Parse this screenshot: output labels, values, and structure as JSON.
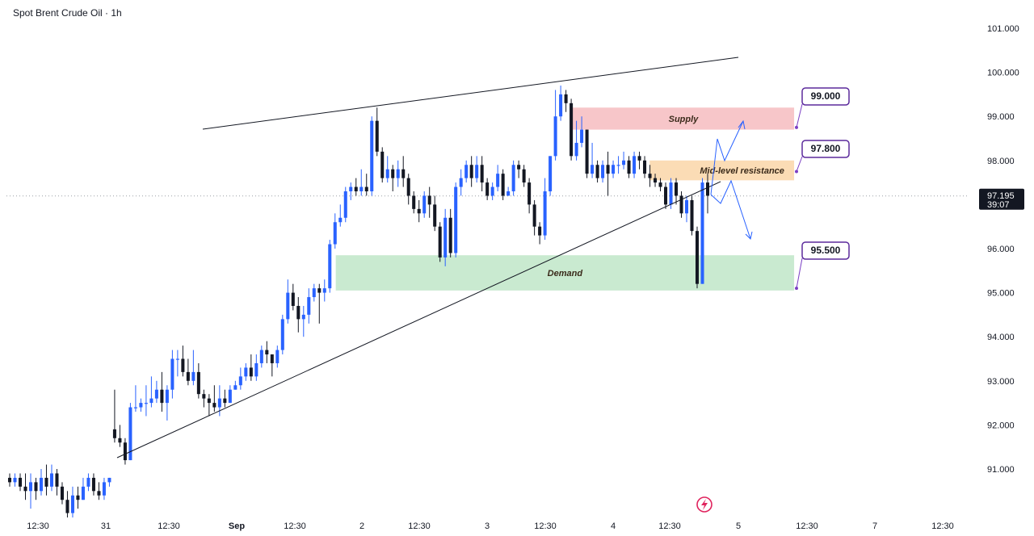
{
  "header": {
    "title": "Spot Brent Crude Oil · 1h"
  },
  "chart_data": {
    "type": "candlestick",
    "title": "Spot Brent Crude Oil · 1h",
    "ylim": [
      90.0,
      101.5
    ],
    "y_ticks": [
      "101.000",
      "100.000",
      "99.000",
      "98.000",
      "97.000",
      "96.000",
      "95.000",
      "94.000",
      "93.000",
      "92.000",
      "91.000"
    ],
    "x_ticks": [
      "12:30",
      "31",
      "12:30",
      "Sep",
      "12:30",
      "2",
      "12:30",
      "3",
      "12:30",
      "4",
      "12:30",
      "5",
      "12:30",
      "7",
      "12:30"
    ],
    "current_price": {
      "price": "97.195",
      "countdown": "39:07",
      "value": 97.195
    },
    "zones": [
      {
        "name": "Supply",
        "low": 98.7,
        "high": 99.2,
        "color": "#f7c6c9"
      },
      {
        "name": "Mid-level resistance",
        "low": 97.55,
        "high": 98.0,
        "color": "#fbdcb5"
      },
      {
        "name": "Demand",
        "low": 95.05,
        "high": 95.85,
        "color": "#c9ead0"
      }
    ],
    "callouts": [
      {
        "label": "99.000",
        "value": 99.0
      },
      {
        "label": "97.800",
        "value": 97.8
      },
      {
        "label": "95.500",
        "value": 95.5
      }
    ],
    "trendlines": [
      {
        "name": "upper-trendline",
        "from": [
          0.175,
          98.7
        ],
        "to": [
          0.79,
          100.35
        ]
      },
      {
        "name": "lower-trendline",
        "from": [
          0.098,
          91.3
        ],
        "to": [
          0.775,
          97.4
        ]
      }
    ],
    "candles": [
      [
        90.8,
        90.7,
        90.9,
        90.6
      ],
      [
        90.7,
        90.8,
        90.9,
        90.6
      ],
      [
        90.8,
        90.6,
        90.9,
        90.5
      ],
      [
        90.6,
        90.5,
        90.9,
        90.3
      ],
      [
        90.5,
        90.7,
        90.9,
        90.1
      ],
      [
        90.7,
        90.5,
        90.8,
        90.3
      ],
      [
        90.5,
        90.8,
        91.0,
        90.4
      ],
      [
        90.8,
        90.6,
        91.1,
        90.4
      ],
      [
        90.6,
        90.9,
        91.1,
        90.5
      ],
      [
        90.9,
        90.6,
        91.0,
        90.4
      ],
      [
        90.6,
        90.3,
        90.7,
        90.2
      ],
      [
        90.3,
        90.0,
        90.5,
        89.9
      ],
      [
        90.0,
        90.4,
        90.6,
        89.9
      ],
      [
        90.4,
        90.3,
        90.6,
        90.1
      ],
      [
        90.3,
        90.6,
        90.8,
        90.3
      ],
      [
        90.6,
        90.8,
        90.9,
        90.5
      ],
      [
        90.8,
        90.5,
        90.9,
        90.4
      ],
      [
        90.5,
        90.4,
        90.7,
        90.3
      ],
      [
        90.4,
        90.7,
        90.8,
        90.3
      ],
      [
        90.7,
        90.8,
        90.8,
        90.6
      ],
      [
        91.9,
        91.7,
        92.8,
        91.6
      ],
      [
        91.7,
        91.6,
        92.0,
        91.5
      ],
      [
        91.6,
        91.2,
        91.7,
        91.1
      ],
      [
        91.2,
        92.4,
        92.5,
        91.2
      ],
      [
        92.4,
        92.4,
        92.9,
        92.3
      ],
      [
        92.4,
        92.5,
        92.6,
        92.3
      ],
      [
        92.5,
        92.5,
        92.9,
        92.2
      ],
      [
        92.5,
        92.6,
        93.1,
        92.4
      ],
      [
        92.6,
        92.8,
        93.0,
        92.5
      ],
      [
        92.8,
        92.5,
        93.2,
        92.3
      ],
      [
        92.5,
        92.8,
        92.9,
        92.1
      ],
      [
        92.8,
        93.5,
        93.7,
        92.6
      ],
      [
        93.5,
        93.5,
        93.7,
        93.1
      ],
      [
        93.5,
        93.2,
        93.8,
        93.1
      ],
      [
        93.2,
        93.0,
        93.5,
        92.9
      ],
      [
        93.0,
        93.2,
        93.7,
        92.9
      ],
      [
        93.2,
        92.7,
        93.4,
        92.6
      ],
      [
        92.7,
        92.6,
        92.8,
        92.4
      ],
      [
        92.6,
        92.5,
        92.7,
        92.2
      ],
      [
        92.5,
        92.4,
        92.9,
        92.3
      ],
      [
        92.4,
        92.6,
        92.9,
        92.2
      ],
      [
        92.6,
        92.5,
        92.8,
        92.4
      ],
      [
        92.5,
        92.8,
        92.9,
        92.5
      ],
      [
        92.8,
        92.9,
        93.0,
        92.8
      ],
      [
        92.9,
        93.1,
        93.3,
        92.8
      ],
      [
        93.1,
        93.3,
        93.4,
        93.0
      ],
      [
        93.3,
        93.1,
        93.6,
        93.0
      ],
      [
        93.1,
        93.4,
        93.6,
        93.0
      ],
      [
        93.4,
        93.7,
        93.8,
        93.3
      ],
      [
        93.7,
        93.6,
        93.9,
        93.4
      ],
      [
        93.6,
        93.4,
        93.6,
        93.1
      ],
      [
        93.4,
        93.7,
        93.8,
        93.3
      ],
      [
        93.7,
        94.4,
        94.5,
        93.6
      ],
      [
        94.4,
        95.0,
        95.3,
        94.3
      ],
      [
        95.0,
        94.7,
        95.2,
        94.6
      ],
      [
        94.7,
        94.4,
        94.9,
        94.1
      ],
      [
        94.4,
        94.5,
        94.7,
        94.0
      ],
      [
        94.5,
        94.9,
        95.1,
        94.3
      ],
      [
        94.9,
        95.1,
        95.2,
        94.8
      ],
      [
        95.1,
        95.0,
        95.2,
        94.3
      ],
      [
        95.0,
        95.1,
        95.3,
        94.8
      ],
      [
        95.1,
        96.1,
        96.2,
        95.0
      ],
      [
        96.1,
        96.6,
        96.8,
        96.0
      ],
      [
        96.6,
        96.7,
        97.0,
        96.5
      ],
      [
        96.7,
        97.3,
        97.4,
        96.6
      ],
      [
        97.3,
        97.4,
        97.5,
        97.1
      ],
      [
        97.4,
        97.3,
        97.6,
        97.2
      ],
      [
        97.3,
        97.4,
        97.8,
        97.2
      ],
      [
        97.4,
        97.3,
        97.7,
        97.2
      ],
      [
        97.3,
        98.9,
        99.0,
        97.2
      ],
      [
        98.9,
        98.2,
        99.2,
        98.1
      ],
      [
        98.2,
        97.6,
        98.3,
        97.5
      ],
      [
        97.6,
        97.8,
        98.1,
        97.5
      ],
      [
        97.8,
        97.6,
        97.9,
        97.3
      ],
      [
        97.6,
        97.8,
        98.0,
        97.4
      ],
      [
        97.8,
        97.6,
        98.1,
        97.4
      ],
      [
        97.6,
        97.2,
        97.7,
        97.0
      ],
      [
        97.2,
        96.9,
        97.3,
        96.8
      ],
      [
        96.9,
        96.8,
        97.1,
        96.6
      ],
      [
        96.8,
        97.2,
        97.3,
        96.7
      ],
      [
        97.2,
        97.0,
        97.4,
        96.7
      ],
      [
        97.0,
        96.5,
        97.2,
        96.4
      ],
      [
        96.5,
        95.8,
        96.6,
        95.7
      ],
      [
        95.8,
        96.7,
        96.9,
        95.6
      ],
      [
        96.7,
        95.9,
        96.9,
        95.8
      ],
      [
        95.9,
        97.4,
        97.5,
        95.8
      ],
      [
        97.4,
        97.6,
        97.8,
        97.2
      ],
      [
        97.6,
        97.9,
        98.0,
        97.5
      ],
      [
        97.9,
        97.6,
        98.1,
        97.4
      ],
      [
        97.6,
        97.9,
        98.1,
        97.5
      ],
      [
        97.9,
        97.5,
        98.1,
        97.3
      ],
      [
        97.5,
        97.2,
        97.6,
        97.1
      ],
      [
        97.2,
        97.4,
        97.5,
        97.1
      ],
      [
        97.4,
        97.7,
        97.9,
        97.3
      ],
      [
        97.7,
        97.2,
        97.8,
        97.1
      ],
      [
        97.2,
        97.3,
        97.4,
        97.2
      ],
      [
        97.3,
        97.9,
        98.0,
        97.2
      ],
      [
        97.9,
        97.8,
        98.0,
        97.6
      ],
      [
        97.8,
        97.5,
        97.9,
        97.4
      ],
      [
        97.5,
        97.0,
        97.6,
        96.8
      ],
      [
        97.0,
        96.5,
        97.1,
        96.3
      ],
      [
        96.5,
        96.3,
        96.6,
        96.1
      ],
      [
        96.3,
        97.3,
        97.6,
        96.2
      ],
      [
        97.3,
        98.1,
        98.1,
        97.2
      ],
      [
        98.1,
        99.0,
        99.6,
        98.0
      ],
      [
        99.0,
        99.5,
        99.7,
        98.9
      ],
      [
        99.5,
        99.3,
        99.6,
        99.1
      ],
      [
        99.3,
        98.1,
        99.4,
        98.0
      ],
      [
        98.1,
        98.4,
        98.9,
        98.0
      ],
      [
        98.4,
        98.7,
        99.0,
        98.3
      ],
      [
        98.7,
        97.7,
        98.7,
        97.6
      ],
      [
        97.7,
        97.9,
        98.4,
        97.6
      ],
      [
        97.9,
        97.6,
        98.0,
        97.5
      ],
      [
        97.6,
        97.9,
        98.0,
        97.5
      ],
      [
        97.9,
        97.7,
        98.2,
        97.2
      ],
      [
        97.7,
        97.9,
        98.0,
        97.6
      ],
      [
        97.9,
        97.9,
        98.1,
        97.7
      ],
      [
        97.9,
        98.0,
        98.2,
        97.8
      ],
      [
        98.0,
        97.7,
        98.1,
        97.6
      ],
      [
        97.7,
        98.1,
        98.2,
        97.6
      ],
      [
        98.1,
        98.0,
        98.2,
        97.8
      ],
      [
        98.0,
        97.7,
        98.1,
        97.6
      ],
      [
        97.7,
        97.6,
        97.9,
        97.4
      ],
      [
        97.6,
        97.5,
        97.7,
        97.4
      ],
      [
        97.5,
        97.4,
        97.6,
        97.3
      ],
      [
        97.4,
        97.0,
        97.5,
        96.9
      ],
      [
        97.0,
        97.5,
        97.6,
        96.9
      ],
      [
        97.5,
        97.2,
        97.6,
        97.0
      ],
      [
        97.2,
        96.8,
        97.3,
        96.7
      ],
      [
        96.8,
        97.1,
        97.2,
        96.6
      ],
      [
        97.1,
        96.4,
        97.2,
        96.3
      ],
      [
        96.4,
        95.2,
        96.5,
        95.1
      ],
      [
        95.2,
        97.5,
        97.6,
        95.2
      ],
      [
        97.5,
        97.2,
        97.7,
        96.8
      ]
    ]
  }
}
